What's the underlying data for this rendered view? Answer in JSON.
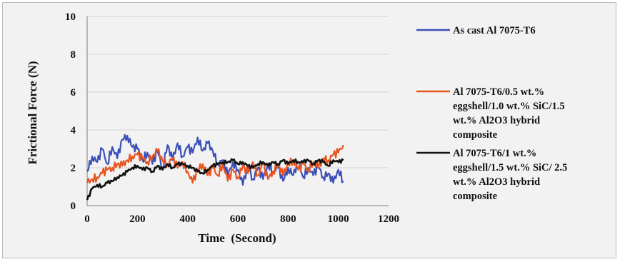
{
  "chart_data": {
    "type": "line",
    "xlabel": "Time  (Second)",
    "ylabel": "Frictional Force (N)",
    "xlim": [
      0,
      1200
    ],
    "ylim": [
      0,
      10
    ],
    "x_ticks": [
      "0",
      "200",
      "400",
      "600",
      "800",
      "1000",
      "1200"
    ],
    "y_ticks": [
      "0",
      "2",
      "4",
      "6",
      "8",
      "10"
    ],
    "grid": "horizontal",
    "legend_position": "right",
    "series": [
      {
        "name": "As cast Al 7075-T6",
        "legend_lines": [
          "As cast Al 7075-T6"
        ],
        "color": "#3a4fb8",
        "x": [
          0,
          20,
          40,
          60,
          80,
          100,
          120,
          140,
          160,
          180,
          200,
          220,
          240,
          260,
          280,
          300,
          320,
          340,
          360,
          380,
          400,
          420,
          440,
          460,
          480,
          500,
          520,
          540,
          560,
          580,
          600,
          620,
          640,
          660,
          680,
          700,
          720,
          740,
          760,
          780,
          800,
          820,
          840,
          860,
          880,
          900,
          920,
          940,
          960,
          980,
          1000,
          1020
        ],
        "y": [
          1.8,
          2.6,
          2.3,
          3.0,
          2.2,
          3.1,
          2.5,
          3.5,
          3.7,
          3.1,
          3.0,
          2.4,
          2.8,
          2.2,
          2.9,
          2.0,
          3.2,
          2.4,
          3.3,
          2.6,
          3.1,
          2.8,
          3.6,
          2.9,
          3.3,
          2.9,
          2.2,
          2.4,
          1.6,
          2.3,
          1.9,
          1.1,
          2.1,
          1.4,
          2.0,
          1.4,
          2.2,
          1.8,
          2.0,
          1.3,
          2.0,
          1.6,
          2.3,
          1.5,
          2.0,
          1.6,
          2.1,
          1.5,
          1.7,
          1.2,
          1.9,
          1.3
        ]
      },
      {
        "name": "Al 7075-T6/0.5 wt.% eggshell/1.0 wt.% SiC/1.5 wt.% Al2O3 hybrid composite",
        "legend_lines": [
          "Al 7075-T6/0.5 wt.%",
          "eggshell/1.0 wt.% SiC/1.5",
          "wt.% Al2O3 hybrid",
          "composite"
        ],
        "color": "#e8531e",
        "x": [
          0,
          20,
          40,
          60,
          80,
          100,
          120,
          140,
          160,
          180,
          200,
          220,
          240,
          260,
          280,
          300,
          320,
          340,
          360,
          380,
          400,
          420,
          440,
          460,
          480,
          500,
          520,
          540,
          560,
          580,
          600,
          620,
          640,
          660,
          680,
          700,
          720,
          740,
          760,
          780,
          800,
          820,
          840,
          860,
          880,
          900,
          920,
          940,
          960,
          980,
          1000,
          1020
        ],
        "y": [
          1.2,
          1.4,
          1.5,
          1.7,
          1.9,
          2.0,
          2.2,
          2.1,
          2.4,
          2.6,
          2.7,
          2.5,
          2.3,
          2.6,
          2.9,
          2.4,
          2.2,
          2.5,
          2.0,
          2.3,
          1.8,
          1.2,
          1.9,
          2.2,
          1.6,
          2.0,
          1.6,
          2.2,
          1.3,
          1.9,
          1.5,
          2.1,
          1.7,
          2.3,
          1.6,
          2.2,
          1.4,
          1.8,
          2.2,
          1.6,
          2.2,
          2.4,
          1.9,
          2.2,
          1.9,
          2.3,
          2.0,
          2.5,
          2.4,
          2.7,
          2.8,
          3.2
        ]
      },
      {
        "name": "Al 7075-T6/1 wt.% eggshell/1.5 wt.% SiC/ 2.5 wt.% Al2O3 hybrid composite",
        "legend_lines": [
          "Al 7075-T6/1 wt.%",
          "eggshell/1.5 wt.% SiC/ 2.5",
          "wt.% Al2O3 hybrid",
          "composite"
        ],
        "color": "#111111",
        "x": [
          0,
          20,
          40,
          60,
          80,
          100,
          120,
          140,
          160,
          180,
          200,
          220,
          240,
          260,
          280,
          300,
          320,
          340,
          360,
          380,
          400,
          420,
          440,
          460,
          480,
          500,
          520,
          540,
          560,
          580,
          600,
          620,
          640,
          660,
          680,
          700,
          720,
          740,
          760,
          780,
          800,
          820,
          840,
          860,
          880,
          900,
          920,
          940,
          960,
          980,
          1000,
          1020
        ],
        "y": [
          0.3,
          0.9,
          1.1,
          1.0,
          1.2,
          1.3,
          1.5,
          1.6,
          1.8,
          2.0,
          2.1,
          1.9,
          2.0,
          1.8,
          2.1,
          1.9,
          2.2,
          2.0,
          2.2,
          2.2,
          2.1,
          2.0,
          1.8,
          1.7,
          1.9,
          2.1,
          2.2,
          2.3,
          2.3,
          2.4,
          2.2,
          2.3,
          2.1,
          2.0,
          2.2,
          2.3,
          2.1,
          2.3,
          2.2,
          2.4,
          2.2,
          2.4,
          2.3,
          2.3,
          2.4,
          2.2,
          2.4,
          2.3,
          2.1,
          2.4,
          2.3,
          2.4
        ]
      }
    ]
  }
}
